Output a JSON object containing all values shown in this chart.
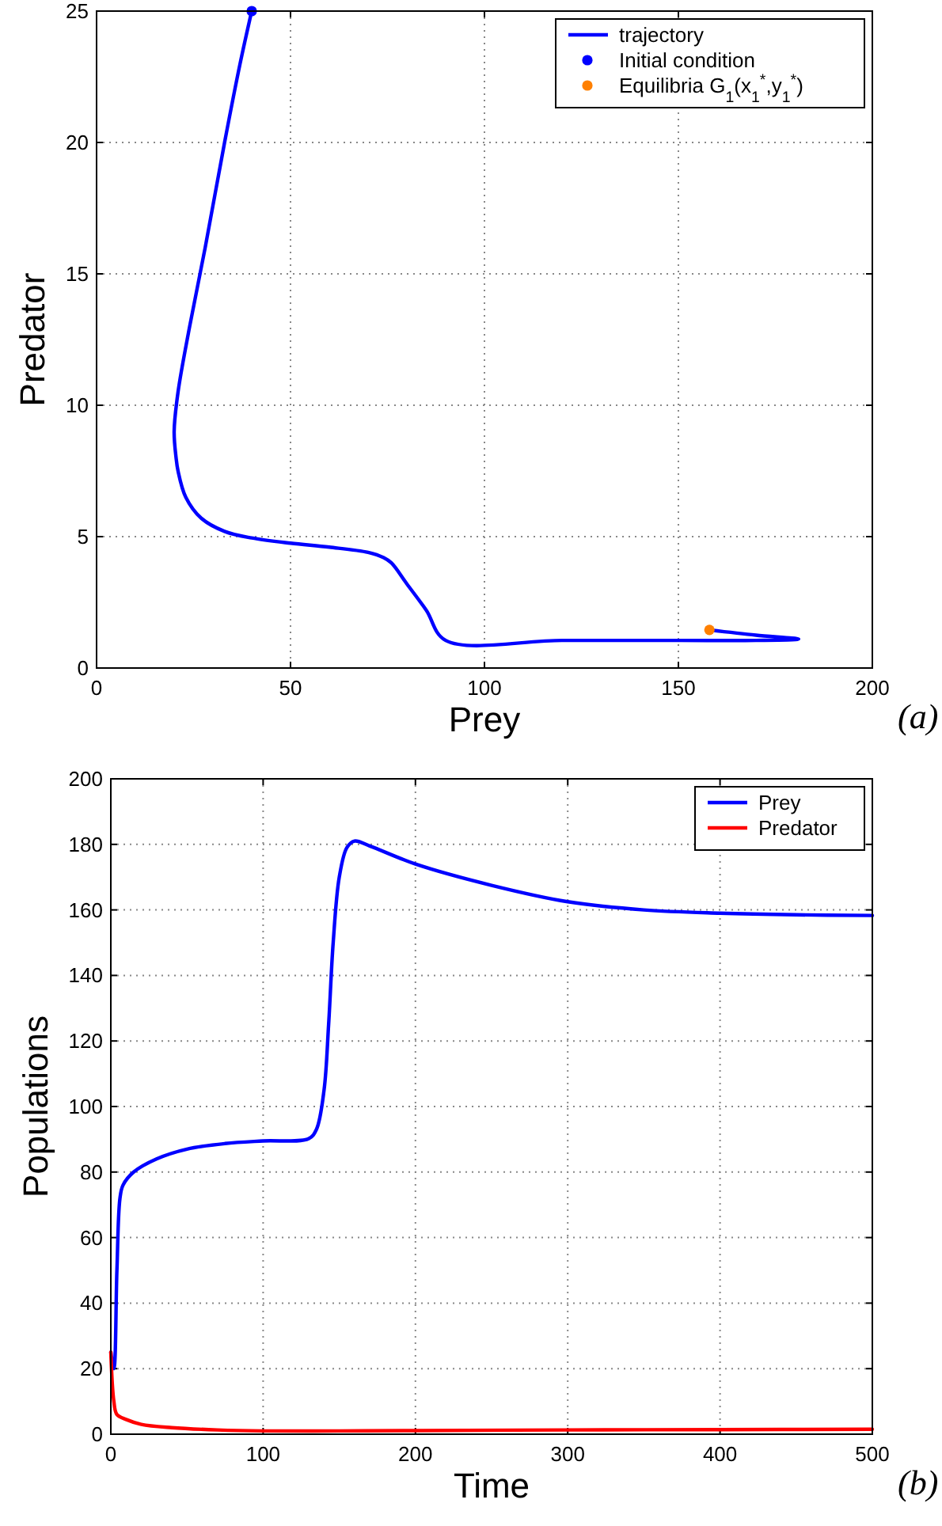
{
  "chart_data": [
    {
      "type": "line",
      "xlabel": "Prey",
      "ylabel": "Predator",
      "xlim": [
        0,
        200
      ],
      "ylim": [
        0,
        25
      ],
      "xticks": [
        0,
        50,
        100,
        150,
        200
      ],
      "yticks": [
        0,
        5,
        10,
        15,
        20,
        25
      ],
      "grid": true,
      "legend": "top right",
      "line_style": "solid",
      "annotations": [
        "(a)"
      ],
      "series": [
        {
          "name": "trajectory",
          "color": "#0000ff",
          "x": [
            40,
            37,
            33,
            28,
            24,
            21,
            20,
            20.5,
            21,
            23,
            27,
            33,
            40,
            50,
            60,
            70,
            74,
            76,
            80,
            85,
            90,
            120,
            150,
            170,
            181,
            170,
            158
          ],
          "values": [
            25,
            23,
            20,
            16,
            13,
            10.5,
            9,
            8,
            7.5,
            6.5,
            5.7,
            5.2,
            4.95,
            4.75,
            4.6,
            4.4,
            4.2,
            4.0,
            3.2,
            2.2,
            1.05,
            1.05,
            1.05,
            1.05,
            1.1,
            1.25,
            1.45
          ]
        },
        {
          "name": "Initial condition",
          "type": "scatter",
          "color": "#0000ff",
          "marker": "circle",
          "x": [
            40
          ],
          "values": [
            25
          ]
        },
        {
          "name": "Equilibria G$_{1}$(x$_{1}$$^{*}$,y$_{1}$$^{*}$)",
          "type": "scatter",
          "color": "#ff8000",
          "marker": "circle",
          "x": [
            158
          ],
          "values": [
            1.45
          ]
        }
      ]
    },
    {
      "type": "line",
      "xlabel": "Time",
      "ylabel": "Populations",
      "xlim": [
        0,
        500
      ],
      "ylim": [
        0,
        200
      ],
      "xticks": [
        0,
        100,
        200,
        300,
        400,
        500
      ],
      "yticks": [
        0,
        20,
        40,
        60,
        80,
        100,
        120,
        140,
        160,
        180,
        200
      ],
      "grid": true,
      "legend": "top right",
      "line_style": "solid",
      "annotations": [
        "(b)"
      ],
      "series": [
        {
          "name": "Prey",
          "color": "#0000ff",
          "x": [
            0,
            2,
            4,
            6,
            8,
            15,
            30,
            50,
            75,
            100,
            130,
            135,
            140,
            143,
            146,
            150,
            155,
            160,
            170,
            200,
            250,
            300,
            350,
            400,
            450,
            500
          ],
          "values": [
            25,
            20,
            50,
            72,
            76,
            80,
            84,
            87,
            88.7,
            89.5,
            90.2,
            93,
            105,
            125,
            150,
            170,
            179,
            181,
            179.5,
            174,
            167.5,
            162.5,
            160,
            159,
            158.5,
            158.3
          ]
        },
        {
          "name": "Predator",
          "color": "#ff0000",
          "x": [
            0,
            2,
            4,
            10,
            20,
            40,
            70,
            100,
            150,
            200,
            300,
            400,
            500
          ],
          "values": [
            25,
            10,
            6,
            4.5,
            3,
            2,
            1.3,
            1,
            1,
            1.1,
            1.3,
            1.4,
            1.5
          ]
        }
      ]
    }
  ]
}
